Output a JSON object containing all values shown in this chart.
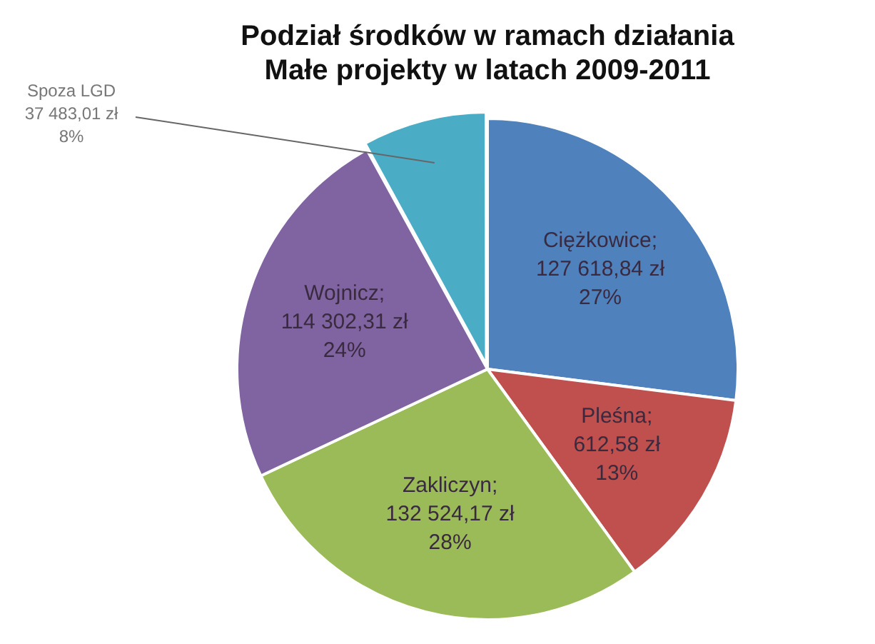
{
  "chart_data": {
    "type": "pie",
    "title": "Podział środków w ramach działania\nMałe projekty w latach 2009-2011",
    "categories": [
      "Ciężkowice",
      "Pleśna",
      "Zakliczyn",
      "Wojnicz",
      "Spoza LGD"
    ],
    "values": [
      27,
      13,
      28,
      24,
      8
    ],
    "colors": [
      "#4f81bd",
      "#c0504d",
      "#9bbb59",
      "#8064a2",
      "#4bacc6"
    ],
    "value_labels": [
      ";\n127 618,84 zł\n27%",
      ";\n612,58 zł\n13%",
      ";\n132 524,17 zł\n28%",
      ";\n114 302,31 zł\n24%",
      "\n37 483,01 zł\n8%"
    ],
    "legend": false
  }
}
